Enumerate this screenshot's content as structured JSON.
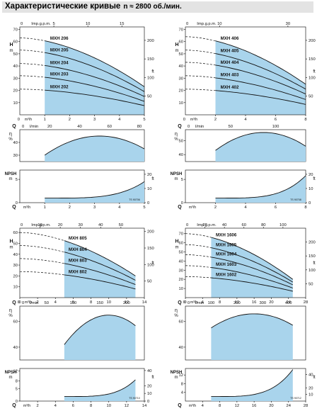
{
  "header": {
    "title": "Характеристические кривые",
    "speed_text": "n ≈ 2800 об./мин."
  },
  "colors": {
    "area": "#a9d4ec",
    "header_bg": "#e3e3e3"
  },
  "chart_data": [
    {
      "type": "line",
      "name": "MXH 2xx",
      "q_ticks": [
        1,
        2,
        3,
        4,
        5
      ],
      "q_range": [
        0,
        5
      ],
      "lmin_ticks": [
        20,
        40,
        60,
        80
      ],
      "lmin_range": [
        0,
        83.3
      ],
      "gpm_ticks": [
        5,
        10,
        15
      ],
      "gpm_range": [
        0,
        18.3
      ],
      "band": [
        1,
        5
      ],
      "q_unit": "m³/h",
      "h_ticks": [
        10,
        20,
        30,
        40,
        50,
        60,
        70
      ],
      "h_range": [
        0,
        72
      ],
      "ft_ticks": [
        50,
        100,
        150,
        200
      ],
      "ft_range": [
        0,
        236
      ],
      "series": [
        {
          "name": "MXH 206",
          "shutoff": 63,
          "end": 23
        },
        {
          "name": "MXH 205",
          "shutoff": 53,
          "end": 19
        },
        {
          "name": "MXH 204",
          "shutoff": 42,
          "end": 15
        },
        {
          "name": "MXH 203",
          "shutoff": 32,
          "end": 11
        },
        {
          "name": "MXH 202",
          "shutoff": 21,
          "end": 7.5
        }
      ],
      "eff_ticks": [
        30,
        40
      ],
      "eff_range": [
        25,
        50
      ],
      "eff_peak": 45,
      "eff_peak_q": 3.2,
      "eff_end": 30,
      "npsh_ticks": [
        0,
        5
      ],
      "npsh_range": [
        0,
        7
      ],
      "npsh_ft_ticks": [
        0,
        10,
        20
      ],
      "npsh_end": 4.5,
      "code": "TS 90706"
    },
    {
      "type": "line",
      "name": "MXH 4xx",
      "q_ticks": [
        2,
        4,
        6,
        8
      ],
      "q_range": [
        0,
        8
      ],
      "lmin_ticks": [
        50,
        100
      ],
      "lmin_range": [
        0,
        133.3
      ],
      "gpm_ticks": [
        10,
        30
      ],
      "gpm_range": [
        0,
        35.2
      ],
      "band": [
        2,
        8
      ],
      "q_unit": "m³/h",
      "h_ticks": [
        10,
        20,
        30,
        40,
        50,
        60,
        70
      ],
      "h_range": [
        0,
        72
      ],
      "ft_ticks": [
        50,
        100,
        150,
        200
      ],
      "ft_range": [
        0,
        236
      ],
      "series": [
        {
          "name": "MXH 406",
          "shutoff": 64,
          "end": 25
        },
        {
          "name": "MXH 405",
          "shutoff": 53,
          "end": 21
        },
        {
          "name": "MXH 404",
          "shutoff": 43,
          "end": 17
        },
        {
          "name": "MXH 403",
          "shutoff": 32,
          "end": 12.5
        },
        {
          "name": "MXH 402",
          "shutoff": 21,
          "end": 8.5
        }
      ],
      "eff_ticks": [
        40,
        50
      ],
      "eff_range": [
        35,
        58
      ],
      "eff_peak": 56,
      "eff_peak_q": 5.2,
      "eff_end": 43,
      "npsh_ticks": [
        0,
        5
      ],
      "npsh_range": [
        0,
        7
      ],
      "npsh_ft_ticks": [
        0,
        10,
        20
      ],
      "npsh_end": 5.8,
      "code": "TS 90708"
    },
    {
      "type": "line",
      "name": "MXH 8xx",
      "q_ticks": [
        0,
        2,
        4,
        6,
        8,
        10,
        12,
        14
      ],
      "q_range": [
        0,
        14
      ],
      "lmin_ticks": [
        50,
        100,
        150,
        200
      ],
      "lmin_range": [
        0,
        233.3
      ],
      "gpm_ticks": [
        10,
        20,
        30,
        40,
        50
      ],
      "gpm_range": [
        0,
        61.6
      ],
      "band": [
        5,
        13
      ],
      "q_unit": "m³/h",
      "h_ticks": [
        10,
        20,
        30,
        40,
        50,
        60
      ],
      "h_range": [
        0,
        64
      ],
      "ft_ticks": [
        50,
        100,
        150,
        200
      ],
      "ft_range": [
        0,
        210
      ],
      "series": [
        {
          "name": "MXH 805",
          "shutoff": 60,
          "end": 20
        },
        {
          "name": "MXH 804",
          "shutoff": 48,
          "end": 16
        },
        {
          "name": "MXH 803",
          "shutoff": 36,
          "end": 12
        },
        {
          "name": "MXH 802",
          "shutoff": 24,
          "end": 8
        }
      ],
      "eff_ticks": [
        40,
        60
      ],
      "eff_range": [
        30,
        72
      ],
      "eff_peak": 65,
      "eff_peak_q": 10,
      "eff_end": 42,
      "npsh_ticks": [
        0,
        5,
        8,
        12
      ],
      "npsh_range": [
        0,
        13
      ],
      "npsh_ft_ticks": [
        0,
        10,
        20,
        40
      ],
      "npsh_end": 8.5,
      "code": "TS 90710"
    },
    {
      "type": "line",
      "name": "MXH 16xx",
      "q_ticks": [
        0,
        4,
        8,
        12,
        16,
        20,
        24,
        28
      ],
      "q_range": [
        0,
        28
      ],
      "lmin_ticks": [
        100,
        200,
        300,
        400
      ],
      "lmin_range": [
        0,
        466.7
      ],
      "gpm_ticks": [
        20,
        40,
        60,
        80,
        100
      ],
      "gpm_range": [
        0,
        123.3
      ],
      "band": [
        6,
        25
      ],
      "q_unit": "m³/h",
      "h_ticks": [
        10,
        20,
        30,
        40,
        50,
        60,
        70
      ],
      "h_range": [
        0,
        76
      ],
      "ft_ticks": [
        50,
        100,
        150,
        200
      ],
      "ft_range": [
        0,
        250
      ],
      "series": [
        {
          "name": "MXH 1606",
          "shutoff": 70,
          "end": 20
        },
        {
          "name": "MXH 1605",
          "shutoff": 58,
          "end": 17
        },
        {
          "name": "MXH 1604",
          "shutoff": 47,
          "end": 14
        },
        {
          "name": "MXH 1603",
          "shutoff": 35,
          "end": 10.5
        },
        {
          "name": "MXH 1602",
          "shutoff": 23,
          "end": 7
        }
      ],
      "eff_ticks": [
        40,
        60
      ],
      "eff_range": [
        30,
        72
      ],
      "eff_peak": 66,
      "eff_peak_q": 16,
      "eff_end": 55,
      "npsh_ticks": [
        4,
        8,
        12
      ],
      "npsh_range": [
        0,
        15
      ],
      "npsh_ft_ticks": [
        10,
        20,
        40
      ],
      "npsh_end": 14.5,
      "code": "TS 90712"
    }
  ],
  "labels": {
    "gpm": "Imp.g.p.m.",
    "lmin": "l/min",
    "q": "Q",
    "m3h": "m³/h",
    "h": "H",
    "m": "m",
    "ft": "ft",
    "eff": "η",
    "pct": "%",
    "npsh": "NPSH"
  }
}
